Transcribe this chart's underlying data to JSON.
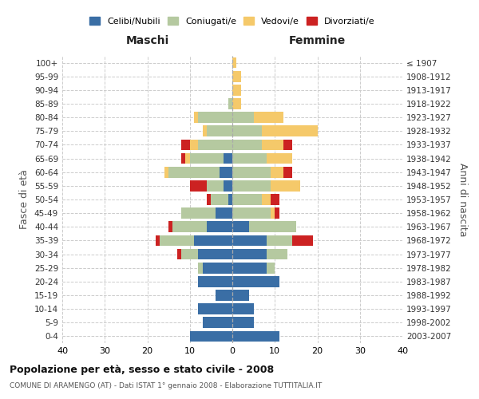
{
  "age_groups": [
    "0-4",
    "5-9",
    "10-14",
    "15-19",
    "20-24",
    "25-29",
    "30-34",
    "35-39",
    "40-44",
    "45-49",
    "50-54",
    "55-59",
    "60-64",
    "65-69",
    "70-74",
    "75-79",
    "80-84",
    "85-89",
    "90-94",
    "95-99",
    "100+"
  ],
  "birth_years": [
    "2003-2007",
    "1998-2002",
    "1993-1997",
    "1988-1992",
    "1983-1987",
    "1978-1982",
    "1973-1977",
    "1968-1972",
    "1963-1967",
    "1958-1962",
    "1953-1957",
    "1948-1952",
    "1943-1947",
    "1938-1942",
    "1933-1937",
    "1928-1932",
    "1923-1927",
    "1918-1922",
    "1913-1917",
    "1908-1912",
    "≤ 1907"
  ],
  "colors": {
    "celibi": "#3a6ea5",
    "coniugati": "#b5c9a0",
    "vedovi": "#f5c96a",
    "divorziati": "#cc2222"
  },
  "maschi": {
    "celibi": [
      10,
      7,
      8,
      4,
      8,
      7,
      8,
      9,
      6,
      4,
      1,
      2,
      3,
      2,
      0,
      0,
      0,
      0,
      0,
      0,
      0
    ],
    "coniugati": [
      0,
      0,
      0,
      0,
      0,
      1,
      4,
      8,
      8,
      8,
      4,
      4,
      12,
      8,
      8,
      6,
      8,
      1,
      0,
      0,
      0
    ],
    "vedovi": [
      0,
      0,
      0,
      0,
      0,
      0,
      0,
      0,
      0,
      0,
      0,
      0,
      1,
      1,
      2,
      1,
      1,
      0,
      0,
      0,
      0
    ],
    "divorziati": [
      0,
      0,
      0,
      0,
      0,
      0,
      1,
      1,
      1,
      0,
      1,
      4,
      0,
      1,
      2,
      0,
      0,
      0,
      0,
      0,
      0
    ]
  },
  "femmine": {
    "celibi": [
      11,
      5,
      5,
      4,
      11,
      8,
      8,
      8,
      4,
      0,
      0,
      0,
      0,
      0,
      0,
      0,
      0,
      0,
      0,
      0,
      0
    ],
    "coniugati": [
      0,
      0,
      0,
      0,
      0,
      2,
      5,
      6,
      11,
      9,
      7,
      9,
      9,
      8,
      7,
      7,
      5,
      0,
      0,
      0,
      0
    ],
    "vedovi": [
      0,
      0,
      0,
      0,
      0,
      0,
      0,
      0,
      0,
      1,
      2,
      7,
      3,
      6,
      5,
      13,
      7,
      2,
      2,
      2,
      1
    ],
    "divorziati": [
      0,
      0,
      0,
      0,
      0,
      0,
      0,
      5,
      0,
      1,
      2,
      0,
      2,
      0,
      2,
      0,
      0,
      0,
      0,
      0,
      0
    ]
  },
  "title": "Popolazione per età, sesso e stato civile - 2008",
  "subtitle": "COMUNE DI ARAMENGO (AT) - Dati ISTAT 1° gennaio 2008 - Elaborazione TUTTITALIA.IT",
  "xlabel_left": "Maschi",
  "xlabel_right": "Femmine",
  "ylabel_left": "Fasce di età",
  "ylabel_right": "Anni di nascita",
  "xlim": 40,
  "xtick_step": 10,
  "legend_labels": [
    "Celibi/Nubili",
    "Coniugati/e",
    "Vedovi/e",
    "Divorziati/e"
  ],
  "background_color": "#ffffff",
  "grid_color": "#cccccc",
  "bar_height": 0.8
}
